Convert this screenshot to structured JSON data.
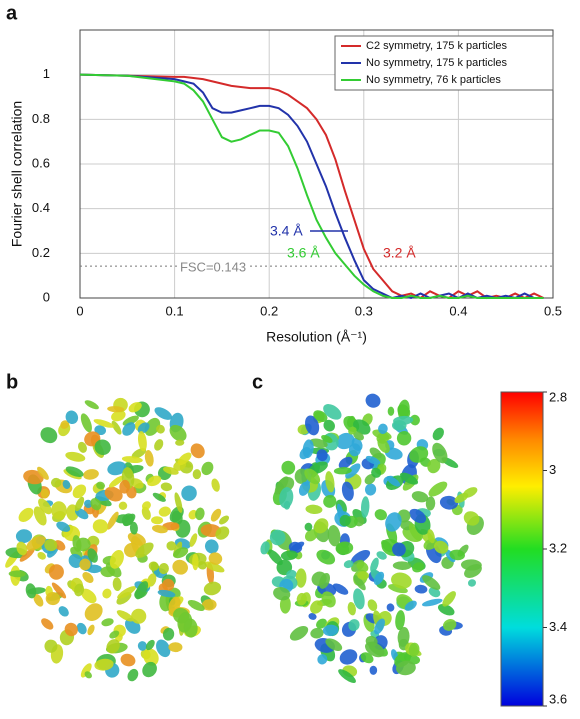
{
  "panel_labels": [
    "a",
    "b",
    "c"
  ],
  "chart_data": {
    "type": "line",
    "xlabel": "Resolution (Å⁻¹)",
    "ylabel": "Fourier shell correlation",
    "x": [
      0,
      0.05,
      0.1,
      0.11,
      0.12,
      0.13,
      0.14,
      0.15,
      0.16,
      0.17,
      0.18,
      0.19,
      0.2,
      0.21,
      0.22,
      0.23,
      0.24,
      0.25,
      0.26,
      0.27,
      0.28,
      0.29,
      0.3,
      0.31,
      0.32,
      0.33,
      0.34,
      0.35,
      0.36,
      0.37,
      0.38,
      0.39,
      0.4,
      0.41,
      0.42,
      0.43,
      0.44,
      0.45,
      0.46,
      0.47,
      0.48,
      0.49
    ],
    "series": [
      {
        "name": "C2 symmetry, 175 k particles",
        "color": "#d42a2a",
        "values": [
          1,
          0.995,
          0.99,
          0.99,
          0.985,
          0.98,
          0.97,
          0.96,
          0.95,
          0.945,
          0.94,
          0.94,
          0.94,
          0.93,
          0.91,
          0.88,
          0.85,
          0.8,
          0.73,
          0.62,
          0.48,
          0.35,
          0.22,
          0.13,
          0.08,
          0.03,
          0.01,
          0.02,
          0,
          0.03,
          0.01,
          0,
          0.03,
          0.01,
          0.03,
          0,
          0.01,
          0,
          0.02,
          0,
          0.02,
          0
        ]
      },
      {
        "name": "No symmetry, 175 k particles",
        "color": "#2233aa",
        "values": [
          1,
          0.995,
          0.98,
          0.97,
          0.96,
          0.92,
          0.85,
          0.83,
          0.83,
          0.84,
          0.85,
          0.86,
          0.86,
          0.85,
          0.82,
          0.77,
          0.7,
          0.6,
          0.5,
          0.38,
          0.27,
          0.17,
          0.08,
          0.04,
          0.02,
          0,
          0.01,
          0,
          0.02,
          0,
          0.01,
          0.02,
          0,
          0.02,
          0,
          0.01,
          0,
          0.01,
          0,
          0.02,
          0,
          0
        ]
      },
      {
        "name": "No symmetry, 76 k particles",
        "color": "#33cc33",
        "values": [
          1,
          0.995,
          0.97,
          0.96,
          0.93,
          0.88,
          0.8,
          0.72,
          0.7,
          0.71,
          0.73,
          0.75,
          0.75,
          0.74,
          0.68,
          0.58,
          0.46,
          0.35,
          0.27,
          0.2,
          0.15,
          0.1,
          0.06,
          0.03,
          0.01,
          0,
          0,
          0.01,
          0,
          0,
          0.01,
          0,
          0,
          0.01,
          0,
          0,
          0,
          0,
          0,
          0,
          0,
          0
        ]
      }
    ],
    "xlim": [
      0,
      0.5
    ],
    "ylim": [
      0,
      1.2
    ],
    "xticks": [
      0,
      0.1,
      0.2,
      0.3,
      0.4,
      0.5
    ],
    "yticks": [
      0,
      0.2,
      0.4,
      0.6,
      0.8,
      1
    ],
    "grid": true,
    "legend": "upper right",
    "threshold": 0.143,
    "threshold_label": "FSC=0.143",
    "annotations": [
      {
        "text": "3.4 Å",
        "color": "#2233aa"
      },
      {
        "text": "3.6 Å",
        "color": "#33cc33"
      },
      {
        "text": "3.2 Å",
        "color": "#d42a2a"
      }
    ]
  },
  "colorbar": {
    "lim": [
      2.8,
      3.6
    ],
    "ticks": [
      2.8,
      3,
      3.2,
      3.4,
      3.6
    ]
  }
}
